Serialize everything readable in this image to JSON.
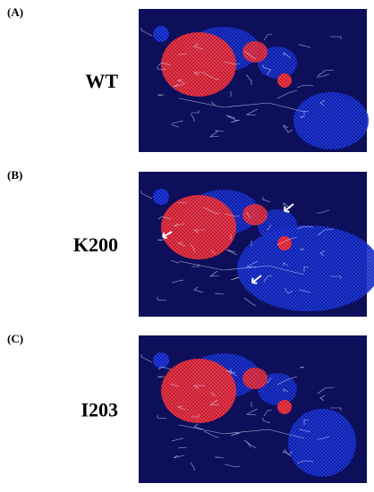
{
  "panels": [
    {
      "label": "(A)",
      "name": "WT"
    },
    {
      "label": "(B)",
      "name": "K200"
    },
    {
      "label": "(C)",
      "name": "I203"
    }
  ]
}
